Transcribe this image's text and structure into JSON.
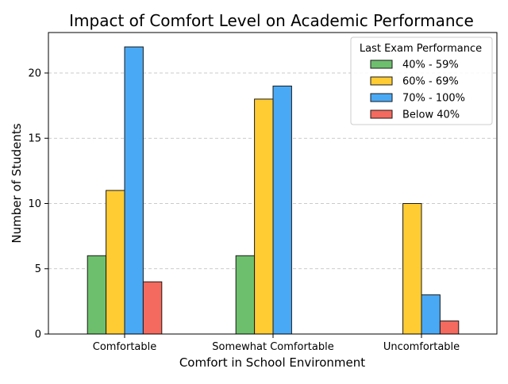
{
  "chart_data": {
    "type": "bar",
    "title": "Impact of Comfort Level on Academic Performance",
    "xlabel": "Comfort in School Environment",
    "ylabel": "Number of Students",
    "categories": [
      "Comfortable",
      "Somewhat Comfortable",
      "Uncomfortable"
    ],
    "legend_title": "Last Exam Performance",
    "legend_position": "top-right",
    "series": [
      {
        "name": "40% - 59%",
        "color": "#6dbf6d",
        "values": [
          6,
          6,
          0
        ]
      },
      {
        "name": "60% - 69%",
        "color": "#ffcc33",
        "values": [
          11,
          18,
          10
        ]
      },
      {
        "name": "70% - 100%",
        "color": "#4aa9f5",
        "values": [
          22,
          19,
          3
        ]
      },
      {
        "name": "Below 40%",
        "color": "#f46a5e",
        "values": [
          4,
          0,
          1
        ]
      }
    ],
    "ylim": [
      0,
      23.1
    ],
    "yticks": [
      0,
      5,
      10,
      15,
      20
    ],
    "grid": "y-dashed"
  }
}
